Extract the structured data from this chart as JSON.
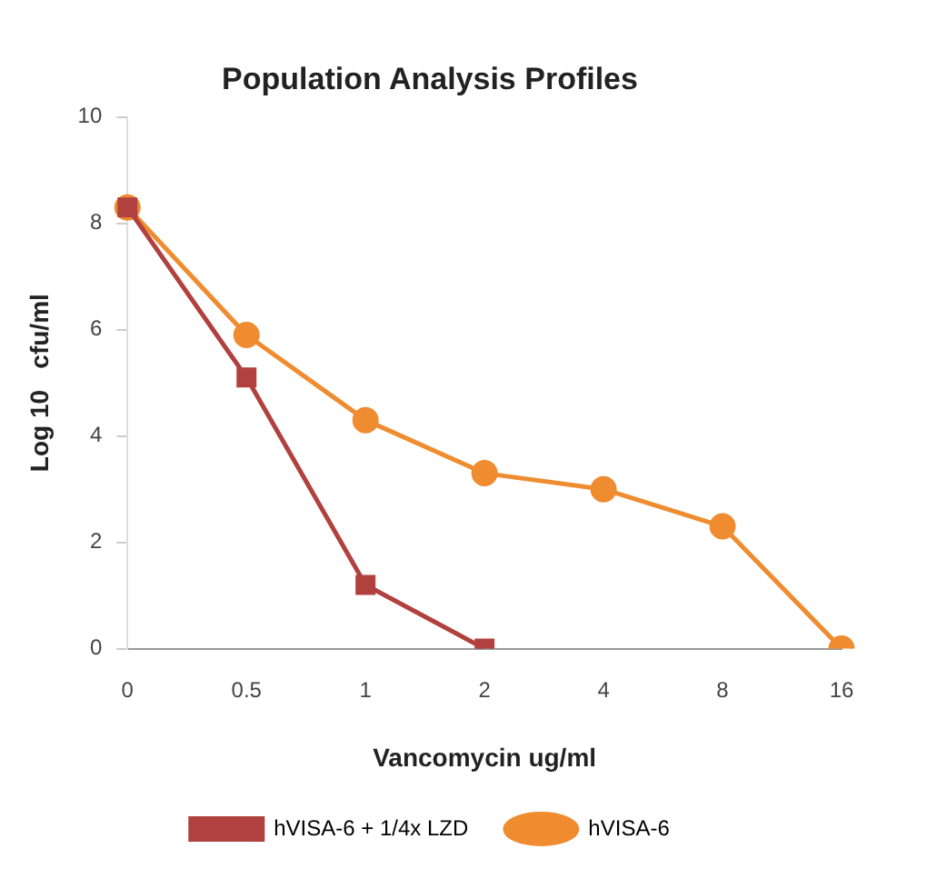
{
  "chart_data": {
    "type": "line",
    "title": "Population Analysis Profiles",
    "xlabel": "Vancomycin ug/ml",
    "ylabel": "Log 10   cfu/ml",
    "categories": [
      "0",
      "0.5",
      "1",
      "2",
      "4",
      "8",
      "16"
    ],
    "series": [
      {
        "name": "hVISA-6 + 1/4x LZD",
        "color": "#b0413e",
        "marker": "square",
        "values": [
          8.3,
          5.1,
          1.2,
          0,
          null,
          null,
          null
        ]
      },
      {
        "name": "hVISA-6",
        "color": "#f08c30",
        "marker": "circle",
        "values": [
          8.3,
          5.9,
          4.3,
          3.3,
          3.0,
          2.3,
          0
        ]
      }
    ],
    "ylim": [
      0,
      10
    ],
    "yticks": [
      0,
      2,
      4,
      6,
      8,
      10
    ],
    "grid": false,
    "legend": "bottom",
    "line_style": "solid"
  }
}
